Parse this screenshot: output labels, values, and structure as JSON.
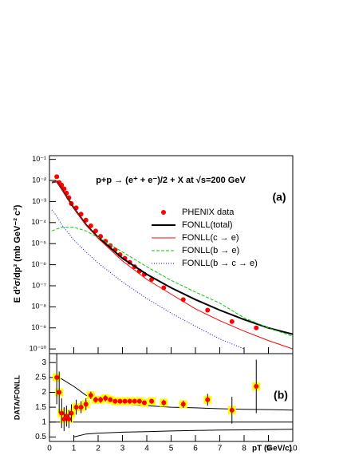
{
  "chart_data": [
    {
      "type": "line",
      "title": "p+p → (e⁺ + e⁻)/2 + X at √s=200 GeV",
      "panel_label": "(a)",
      "y_label": "E d³σ/dp³ (mb GeV⁻² c³)",
      "log_y": true,
      "xlim": [
        0,
        10
      ],
      "ylim": [
        6e-11,
        0.15
      ],
      "yticks": [
        {
          "value": 1e-10,
          "label": "10⁻¹⁰"
        },
        {
          "value": 1e-09,
          "label": "10⁻⁹"
        },
        {
          "value": 1e-08,
          "label": "10⁻⁸"
        },
        {
          "value": 1e-07,
          "label": "10⁻⁷"
        },
        {
          "value": 1e-06,
          "label": "10⁻⁶"
        },
        {
          "value": 1e-05,
          "label": "10⁻⁵"
        },
        {
          "value": 0.0001,
          "label": "10⁻⁴"
        },
        {
          "value": 0.001,
          "label": "10⁻³"
        },
        {
          "value": 0.01,
          "label": "10⁻²"
        },
        {
          "value": 0.1,
          "label": "10⁻¹"
        }
      ],
      "series": [
        {
          "name": "PHENIX data",
          "color": "#ff0000",
          "style": "markers",
          "x": [
            0.3,
            0.4,
            0.5,
            0.6,
            0.7,
            0.8,
            0.9,
            1.1,
            1.3,
            1.5,
            1.7,
            1.9,
            2.1,
            2.3,
            2.5,
            2.7,
            2.9,
            3.1,
            3.3,
            3.5,
            3.7,
            3.9,
            4.2,
            4.7,
            5.5,
            6.5,
            7.5,
            8.5
          ],
          "values": [
            0.015,
            0.008,
            0.006,
            0.004,
            0.0025,
            0.0015,
            0.0008,
            0.0005,
            0.00025,
            0.00013,
            7e-05,
            4e-05,
            2.2e-05,
            1.3e-05,
            8e-06,
            5e-06,
            3e-06,
            2e-06,
            1.3e-06,
            8e-07,
            5e-07,
            3.5e-07,
            2e-07,
            8e-08,
            2.2e-08,
            7e-09,
            2e-09,
            1e-09
          ]
        },
        {
          "name": "FONLL(total)",
          "color": "#000000",
          "style": "solid",
          "x": [
            0.1,
            0.3,
            0.5,
            1,
            1.5,
            2,
            3,
            4,
            5,
            6,
            7,
            8,
            9,
            10
          ],
          "values": [
            0.008,
            0.009,
            0.004,
            0.0005,
            8e-05,
            2e-05,
            2e-06,
            3.5e-07,
            8e-08,
            2.2e-08,
            7e-09,
            2.5e-09,
            1e-09,
            5e-10
          ]
        },
        {
          "name": "FONLL(c → e)",
          "color": "#ff0000",
          "style": "solid",
          "x": [
            0.1,
            0.3,
            0.5,
            1,
            1.5,
            2,
            3,
            4,
            5,
            6,
            7,
            8,
            9,
            10
          ],
          "values": [
            0.008,
            0.009,
            0.004,
            0.0005,
            7.5e-05,
            1.8e-05,
            1.5e-06,
            2e-07,
            4e-08,
            8e-09,
            2.2e-09,
            7e-10,
            2.5e-10,
            1e-10
          ]
        },
        {
          "name": "FONLL(b → e)",
          "color": "#00cc00",
          "style": "dashed",
          "x": [
            0.1,
            0.3,
            0.5,
            1,
            1.5,
            2,
            3,
            4,
            5,
            6,
            7,
            8,
            9,
            10
          ],
          "values": [
            4e-05,
            5e-05,
            6e-05,
            6e-05,
            4e-05,
            2e-05,
            4e-06,
            8e-07,
            1.8e-07,
            5e-08,
            1.5e-08,
            3e-09,
            1e-09,
            4e-10
          ]
        },
        {
          "name": "FONLL(b → c → e)",
          "color": "#0000ff",
          "style": "dotted",
          "x": [
            0.1,
            0.3,
            0.5,
            1,
            1.5,
            2,
            3,
            4,
            5,
            6,
            7,
            8,
            9,
            10
          ],
          "values": [
            0.0004,
            0.0002,
            8e-05,
            1.5e-05,
            4e-06,
            1.2e-06,
            1.5e-07,
            2.5e-08,
            5e-09,
            1.2e-09,
            3e-10,
            1e-10,
            null,
            null
          ]
        }
      ]
    },
    {
      "type": "ratio",
      "panel_label": "(b)",
      "y_label": "DATA/FONLL",
      "x_label": "pT (GeV/c)",
      "xlim": [
        0,
        10
      ],
      "ylim": [
        0.35,
        3.3
      ],
      "xticks": [
        0,
        1,
        2,
        3,
        4,
        5,
        6,
        7,
        8,
        9,
        10
      ],
      "yticks": [
        0.5,
        1,
        1.5,
        2,
        2.5,
        3
      ],
      "reference": 1,
      "points": {
        "color": "#ff0000",
        "x": [
          0.3,
          0.4,
          0.5,
          0.6,
          0.7,
          0.8,
          0.9,
          1.1,
          1.3,
          1.5,
          1.7,
          1.9,
          2.1,
          2.3,
          2.5,
          2.7,
          2.9,
          3.1,
          3.3,
          3.5,
          3.7,
          3.9,
          4.2,
          4.7,
          5.5,
          6.5,
          7.5,
          8.5
        ],
        "values": [
          2.5,
          2.0,
          1.3,
          1.1,
          1.2,
          1.1,
          1.3,
          1.5,
          1.5,
          1.6,
          1.9,
          1.75,
          1.75,
          1.8,
          1.75,
          1.7,
          1.7,
          1.7,
          1.7,
          1.7,
          1.7,
          1.65,
          1.7,
          1.65,
          1.6,
          1.75,
          1.4,
          2.2
        ],
        "errors": [
          0.9,
          0.7,
          0.5,
          0.4,
          0.35,
          0.3,
          0.3,
          0.25,
          0.2,
          0.2,
          0.12,
          0.1,
          0.1,
          0.1,
          0.08,
          0.08,
          0.08,
          0.08,
          0.08,
          0.08,
          0.08,
          0.08,
          0.08,
          0.1,
          0.12,
          0.2,
          0.45,
          0.9
        ]
      },
      "band": {
        "color": "#000000",
        "x": [
          0.3,
          0.5,
          1,
          1.5,
          2,
          3,
          4,
          5,
          6,
          7,
          8,
          9,
          10
        ],
        "upper": [
          2.5,
          2.45,
          2.2,
          1.9,
          1.75,
          1.6,
          1.55,
          1.5,
          1.48,
          1.45,
          1.43,
          1.42,
          1.4
        ],
        "lower": [
          null,
          null,
          0.5,
          0.6,
          0.63,
          0.66,
          0.68,
          0.7,
          0.72,
          0.73,
          0.74,
          0.75,
          0.76
        ]
      }
    }
  ]
}
